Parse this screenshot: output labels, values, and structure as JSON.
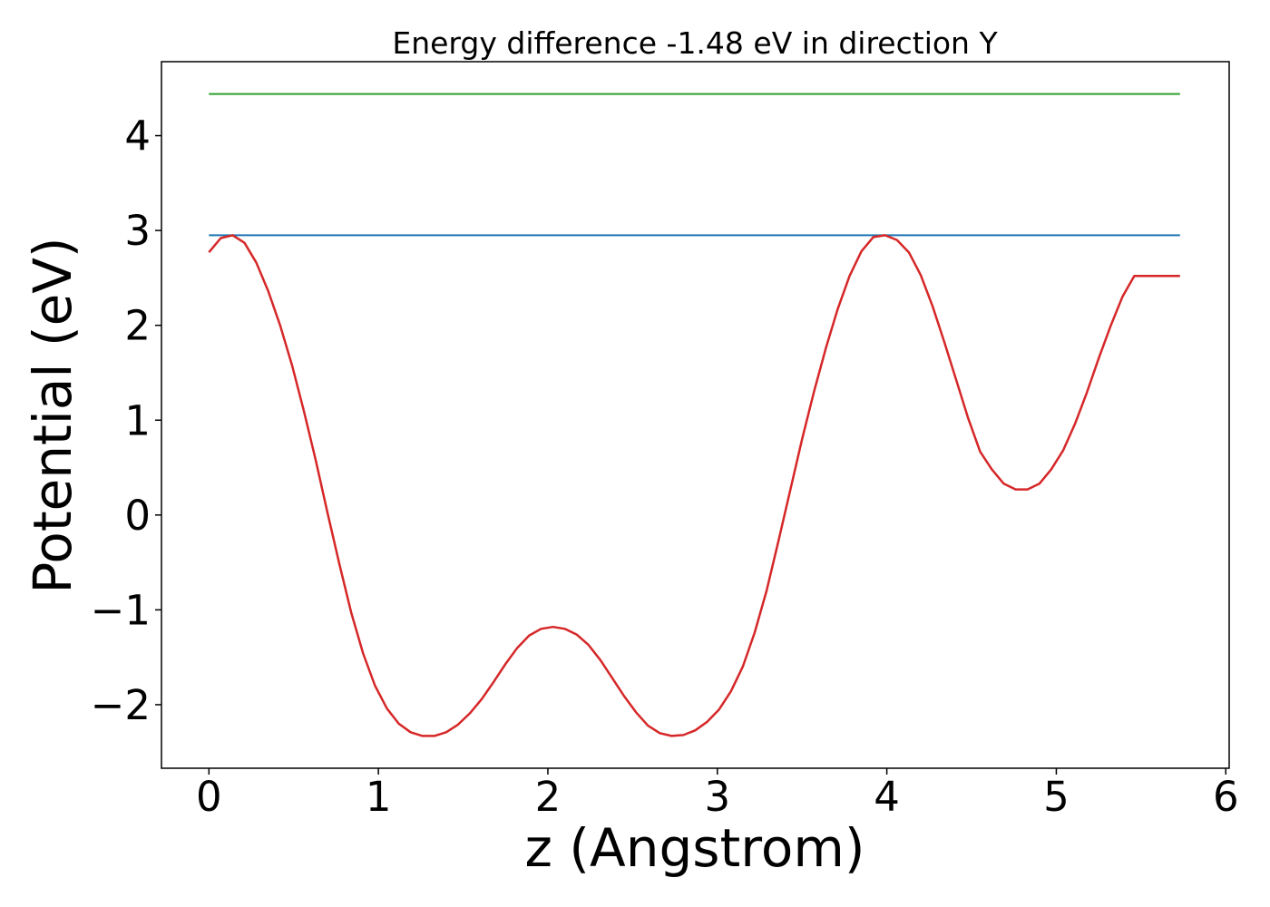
{
  "chart_data": {
    "type": "line",
    "title": "Energy difference -1.48 eV in direction Y",
    "xlabel": "z (Angstrom)",
    "ylabel": "Potential (eV)",
    "xlim": [
      -0.28,
      6.02
    ],
    "ylim": [
      -2.67,
      4.78
    ],
    "xticks": [
      0,
      1,
      2,
      3,
      4,
      5,
      6
    ],
    "xtick_labels": [
      "0",
      "1",
      "2",
      "3",
      "4",
      "5",
      "6"
    ],
    "yticks": [
      -2,
      -1,
      0,
      1,
      2,
      3,
      4
    ],
    "ytick_labels": [
      "−2",
      "−1",
      "0",
      "1",
      "2",
      "3",
      "4"
    ],
    "grid": false,
    "series": [
      {
        "color": "#2ca02c",
        "x": [
          0,
          5.73
        ],
        "y": [
          4.44,
          4.44
        ]
      },
      {
        "color": "#1f77b4",
        "x": [
          0,
          5.73
        ],
        "y": [
          2.95,
          2.95
        ]
      },
      {
        "color": "#d62728",
        "x": [
          0,
          0.07,
          0.14,
          0.21,
          0.28,
          0.35,
          0.42,
          0.49,
          0.56,
          0.63,
          0.7,
          0.77,
          0.84,
          0.91,
          0.98,
          1.05,
          1.12,
          1.19,
          1.26,
          1.33,
          1.4,
          1.47,
          1.54,
          1.61,
          1.68,
          1.75,
          1.82,
          1.89,
          1.96,
          2.03,
          2.1,
          2.17,
          2.24,
          2.31,
          2.38,
          2.45,
          2.52,
          2.59,
          2.66,
          2.73,
          2.8,
          2.87,
          2.94,
          3.01,
          3.08,
          3.15,
          3.22,
          3.29,
          3.36,
          3.43,
          3.5,
          3.57,
          3.64,
          3.71,
          3.78,
          3.85,
          3.92,
          3.99,
          4.06,
          4.13,
          4.2,
          4.27,
          4.34,
          4.41,
          4.48,
          4.55,
          4.62,
          4.69,
          4.76,
          4.83,
          4.9,
          4.97,
          5.04,
          5.11,
          5.18,
          5.25,
          5.32,
          5.39,
          5.46,
          5.53,
          5.6,
          5.67,
          5.73
        ],
        "y": [
          2.77,
          2.92,
          2.95,
          2.87,
          2.66,
          2.36,
          2.0,
          1.58,
          1.1,
          0.58,
          0.02,
          -0.52,
          -1.03,
          -1.46,
          -1.8,
          -2.04,
          -2.2,
          -2.29,
          -2.33,
          -2.33,
          -2.29,
          -2.21,
          -2.09,
          -1.94,
          -1.76,
          -1.57,
          -1.4,
          -1.27,
          -1.2,
          -1.18,
          -1.2,
          -1.26,
          -1.37,
          -1.53,
          -1.72,
          -1.91,
          -2.08,
          -2.22,
          -2.3,
          -2.33,
          -2.32,
          -2.27,
          -2.18,
          -2.05,
          -1.86,
          -1.6,
          -1.24,
          -0.8,
          -0.28,
          0.26,
          0.8,
          1.3,
          1.76,
          2.17,
          2.52,
          2.78,
          2.93,
          2.95,
          2.9,
          2.77,
          2.53,
          2.2,
          1.82,
          1.42,
          1.02,
          0.67,
          0.48,
          0.33,
          0.27,
          0.27,
          0.33,
          0.48,
          0.68,
          0.96,
          1.29,
          1.65,
          1.99,
          2.3,
          2.52,
          2.52,
          2.52,
          2.52,
          2.52
        ]
      }
    ]
  }
}
